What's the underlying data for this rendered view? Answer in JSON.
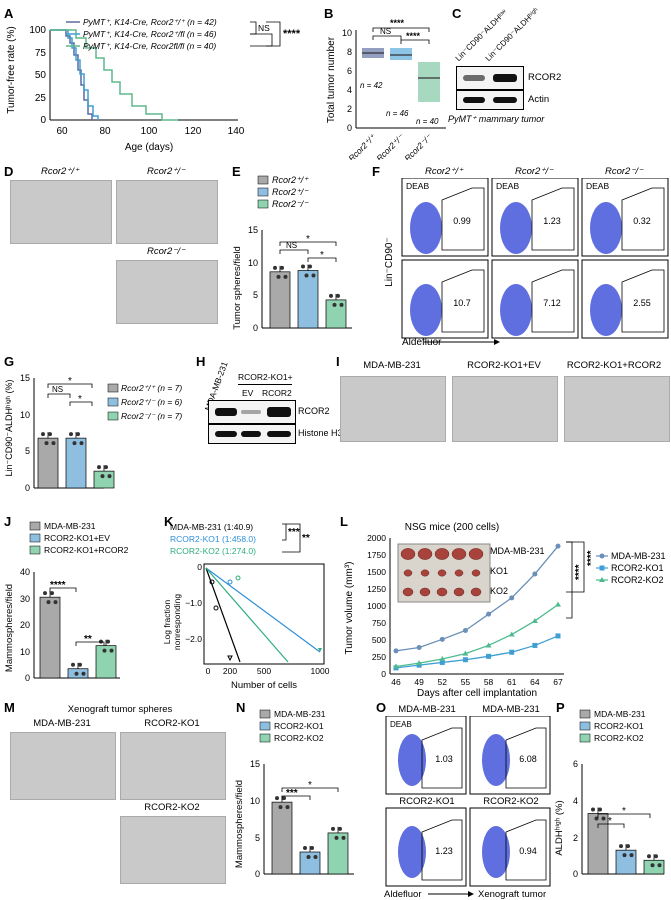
{
  "panels": [
    "A",
    "B",
    "C",
    "D",
    "E",
    "F",
    "G",
    "H",
    "I",
    "J",
    "K",
    "L",
    "M",
    "N",
    "O",
    "P"
  ],
  "stars": {
    "p4": "****",
    "p3": "***",
    "p2": "**",
    "p1": "*",
    "ns": "NS"
  },
  "A": {
    "ylabel": "Tumor-free rate (%)",
    "xlabel": "Age (days)",
    "xticks": [
      "60",
      "80",
      "100",
      "120",
      "140"
    ],
    "yticks": [
      "0",
      "25",
      "50",
      "75",
      "100"
    ],
    "legend": [
      "PyMT⁺, K14-Cre, Rcor2⁺/⁺ (n = 42)",
      "PyMT⁺, K14-Cre, Rcor2⁺/fl (n = 46)",
      "PyMT⁺, K14-Cre, Rcor2fl/fl (n = 40)"
    ],
    "colors": [
      "#5a6a9e",
      "#3f9fd3",
      "#5fb88d"
    ]
  },
  "B": {
    "ylabel": "Total tumor number",
    "yticks": [
      "0",
      "2",
      "4",
      "6",
      "8",
      "10"
    ],
    "groups": [
      "Rcor2⁺/⁺",
      "Rcor2⁺/⁻",
      "Rcor2⁻/⁻"
    ],
    "n": [
      "n = 42",
      "n = 46",
      "n = 40"
    ]
  },
  "C": {
    "cols": [
      "Lin⁻CD90⁻ALDHˡᵒʷ",
      "Lin⁻CD90⁻ALDHʰⁱᵍʰ"
    ],
    "rows": [
      "RCOR2",
      "Actin"
    ],
    "caption": "PyMT⁺ mammary tumor"
  },
  "D": {
    "titles": [
      "Rcor2⁺/⁺",
      "Rcor2⁺/⁻",
      "Rcor2⁻/⁻"
    ]
  },
  "E": {
    "legend": [
      "Rcor2⁺/⁺",
      "Rcor2⁺/⁻",
      "Rcor2⁻/⁻"
    ],
    "ylabel": "Tumor spheres/field",
    "yticks": [
      "0",
      "5",
      "10",
      "15"
    ],
    "values": [
      8.6,
      8.8,
      4.3
    ]
  },
  "F": {
    "titles": [
      "Rcor2⁺/⁺",
      "Rcor2⁺/⁻",
      "Rcor2⁻/⁻"
    ],
    "deab": "DEAB",
    "top": [
      "0.99",
      "1.23",
      "0.32"
    ],
    "bottom": [
      "10.7",
      "7.12",
      "2.55"
    ],
    "ylabel": "Lin⁻CD90⁻",
    "xlabel": "Aldefluor"
  },
  "G": {
    "ylabel": "Lin⁻CD90⁻ALDHʰⁱᵍʰ (%)",
    "yticks": [
      "0",
      "5",
      "10",
      "15"
    ],
    "legend": [
      "Rcor2⁺/⁺ (n = 7)",
      "Rcor2⁺/⁻ (n = 6)",
      "Rcor2⁻/⁻ (n = 7)"
    ],
    "values": [
      6.8,
      6.8,
      2.3
    ]
  },
  "H": {
    "cols": [
      "MDA-MB-231",
      "EV",
      "RCOR2"
    ],
    "group": "RCOR2-KO1+",
    "rows": [
      "RCOR2",
      "Histone H3"
    ]
  },
  "I": {
    "titles": [
      "MDA-MB-231",
      "RCOR2-KO1+EV",
      "RCOR2-KO1+RCOR2"
    ]
  },
  "J": {
    "legend": [
      "MDA-MB-231",
      "RCOR2-KO1+EV",
      "RCOR2-KO1+RCOR2"
    ],
    "ylabel": "Mammospheres/field",
    "yticks": [
      "0",
      "10",
      "20",
      "30",
      "40"
    ],
    "values": [
      30.5,
      3.5,
      12.2
    ]
  },
  "K": {
    "legend": [
      "MDA-MB-231 (1:40.9)",
      "RCOR2-KO1 (1:458.0)",
      "RCOR2-KO2 (1:274.0)"
    ],
    "ylabel": [
      "Log fraction",
      "nonresponding"
    ],
    "xlabel": "Number of cells",
    "xticks": [
      "0",
      "200",
      "500",
      "1000"
    ],
    "yticks": [
      "0",
      "−1.0",
      "−2.0"
    ]
  },
  "L": {
    "title": "NSG mice (200 cells)",
    "ylabel": "Tumor volume (mm³)",
    "xlabel": "Days after cell implantation",
    "xticks": [
      "46",
      "49",
      "52",
      "55",
      "58",
      "61",
      "64",
      "67"
    ],
    "yticks": [
      "0",
      "250",
      "500",
      "750",
      "1000",
      "1250",
      "1500",
      "1750",
      "2000"
    ],
    "legend": [
      "MDA-MB-231",
      "RCOR2-KO1",
      "RCOR2-KO2"
    ],
    "inset": [
      "MDA-MB-231",
      "KO1",
      "KO2"
    ],
    "series": [
      {
        "name": "MDA-MB-231",
        "values": [
          340,
          390,
          510,
          640,
          880,
          1120,
          1470,
          1880
        ]
      },
      {
        "name": "RCOR2-KO1",
        "values": [
          90,
          130,
          170,
          210,
          260,
          320,
          420,
          560
        ]
      },
      {
        "name": "RCOR2-KO2",
        "values": [
          110,
          160,
          220,
          300,
          420,
          580,
          780,
          1020
        ]
      }
    ]
  },
  "M": {
    "title": "Xenograft tumor spheres",
    "titles": [
      "MDA-MB-231",
      "RCOR2-KO1",
      "RCOR2-KO2"
    ]
  },
  "N": {
    "legend": [
      "MDA-MB-231",
      "RCOR2-KO1",
      "RCOR2-KO2"
    ],
    "ylabel": "Mammospheres/field",
    "yticks": [
      "0",
      "5",
      "10",
      "15"
    ],
    "values": [
      9.8,
      3.0,
      5.6
    ]
  },
  "O": {
    "titles": [
      "MDA-MB-231",
      "MDA-MB-231",
      "RCOR2-KO1",
      "RCOR2-KO2"
    ],
    "deab": "DEAB",
    "values": [
      "1.03",
      "6.08",
      "1.23",
      "0.94"
    ],
    "xlabel": "Aldefluor",
    "xlabel2": "Xenograft tumor"
  },
  "P": {
    "legend": [
      "MDA-MB-231",
      "RCOR2-KO1",
      "RCOR2-KO2"
    ],
    "ylabel": "ALDHʰⁱᵍʰ (%)",
    "yticks": [
      "0",
      "2",
      "4",
      "6"
    ],
    "values": [
      3.3,
      1.3,
      0.75
    ]
  },
  "colors": {
    "gray": "#a9a9a9",
    "blue": "#8fbfe0",
    "green": "#8fd3b0",
    "navy": "#5a6a9e",
    "line1": "#6a8fb8",
    "line2": "#3f9fd3",
    "line3": "#4dbb8f"
  }
}
